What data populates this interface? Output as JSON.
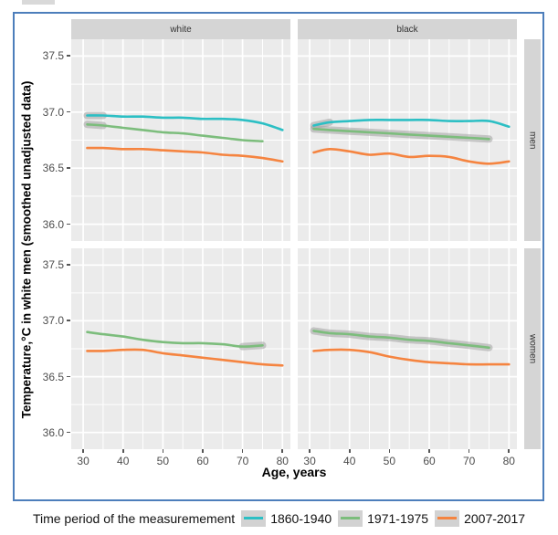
{
  "legend": {
    "title": "Time period of the measuremement",
    "items": [
      {
        "period": "1860-1940",
        "label": "1860-1940"
      },
      {
        "period": "1971-1975",
        "label": "1971-1975"
      },
      {
        "period": "2007-2017",
        "label": "2007-2017"
      }
    ]
  },
  "chart_data": {
    "type": "line",
    "title": "",
    "xlabel": "Age, years",
    "ylabel": "Temperature,°C in white men (smoothed unadjusted data)",
    "facet_cols": [
      "white",
      "black"
    ],
    "facet_rows": [
      "men",
      "women"
    ],
    "xlim": [
      27,
      82
    ],
    "ylim": [
      35.85,
      37.65
    ],
    "x_ticks": [
      30,
      40,
      50,
      60,
      70,
      80
    ],
    "x_tick_labels": [
      "30",
      "40",
      "50",
      "60",
      "70",
      "80"
    ],
    "x_minor": [
      35,
      45,
      55,
      65,
      75
    ],
    "y_ticks": [
      37.5,
      37.0,
      36.5,
      36.0
    ],
    "y_tick_labels": [
      "37.5",
      "37.0",
      "36.5",
      "36.0"
    ],
    "y_minor": [
      37.25,
      36.75,
      36.25
    ],
    "grid": true,
    "legend_position": "bottom",
    "panel_bg": "#ebebeb",
    "grid_color": "#ffffff",
    "ci_color": "#a3a3a3",
    "series_colors": {
      "1860-1940": "#2cbfc4",
      "1971-1975": "#7cbd7c",
      "2007-2017": "#f58440"
    },
    "panels": [
      {
        "id": "white_men",
        "col": "white",
        "row": "men",
        "series": [
          {
            "period": "1860-1940",
            "x": [
              31,
              35,
              40,
              45,
              50,
              55,
              60,
              65,
              70,
              75,
              80
            ],
            "y": [
              36.97,
              36.97,
              36.96,
              36.96,
              36.95,
              36.95,
              36.94,
              36.94,
              36.93,
              36.9,
              36.84
            ],
            "ci": [
              [
                31,
                36
              ]
            ]
          },
          {
            "period": "1971-1975",
            "x": [
              31,
              35,
              40,
              45,
              50,
              55,
              60,
              65,
              70,
              75
            ],
            "y": [
              36.89,
              36.88,
              36.86,
              36.84,
              36.82,
              36.81,
              36.79,
              36.77,
              36.75,
              36.74
            ],
            "ci": [
              [
                31,
                35
              ],
              [
                71,
                75
              ]
            ]
          },
          {
            "period": "2007-2017",
            "x": [
              31,
              35,
              40,
              45,
              50,
              55,
              60,
              65,
              70,
              75,
              80
            ],
            "y": [
              36.68,
              36.68,
              36.67,
              36.67,
              36.66,
              36.65,
              36.64,
              36.62,
              36.61,
              36.59,
              36.56
            ],
            "ci": []
          }
        ]
      },
      {
        "id": "black_men",
        "col": "black",
        "row": "men",
        "series": [
          {
            "period": "1860-1940",
            "x": [
              31,
              35,
              40,
              45,
              50,
              55,
              60,
              65,
              70,
              75,
              80
            ],
            "y": [
              36.88,
              36.91,
              36.92,
              36.93,
              36.93,
              36.93,
              36.93,
              36.92,
              36.92,
              36.92,
              36.87
            ],
            "ci": [
              [
                31,
                36
              ]
            ]
          },
          {
            "period": "1971-1975",
            "x": [
              31,
              35,
              40,
              45,
              50,
              55,
              60,
              65,
              70,
              75
            ],
            "y": [
              36.85,
              36.84,
              36.83,
              36.82,
              36.81,
              36.8,
              36.79,
              36.78,
              36.77,
              36.76
            ],
            "ci": [
              [
                31,
                75
              ]
            ]
          },
          {
            "period": "2007-2017",
            "x": [
              31,
              35,
              40,
              45,
              50,
              55,
              60,
              65,
              70,
              75,
              80
            ],
            "y": [
              36.64,
              36.67,
              36.65,
              36.62,
              36.63,
              36.6,
              36.61,
              36.6,
              36.56,
              36.54,
              36.56
            ],
            "ci": [
              [
                31,
                34
              ],
              [
                76,
                80
              ]
            ]
          }
        ]
      },
      {
        "id": "white_women",
        "col": "white",
        "row": "women",
        "series": [
          {
            "period": "1971-1975",
            "x": [
              31,
              35,
              40,
              45,
              50,
              55,
              60,
              65,
              70,
              75
            ],
            "y": [
              36.9,
              36.88,
              36.86,
              36.83,
              36.81,
              36.8,
              36.8,
              36.79,
              36.77,
              36.78
            ],
            "ci": [
              [
                70,
                75
              ]
            ]
          },
          {
            "period": "2007-2017",
            "x": [
              31,
              35,
              40,
              45,
              50,
              55,
              60,
              65,
              70,
              75,
              80
            ],
            "y": [
              36.73,
              36.73,
              36.74,
              36.74,
              36.71,
              36.69,
              36.67,
              36.65,
              36.63,
              36.61,
              36.6
            ],
            "ci": []
          }
        ]
      },
      {
        "id": "black_women",
        "col": "black",
        "row": "women",
        "series": [
          {
            "period": "1971-1975",
            "x": [
              31,
              35,
              40,
              45,
              50,
              55,
              60,
              65,
              70,
              75
            ],
            "y": [
              36.91,
              36.89,
              36.88,
              36.86,
              36.85,
              36.83,
              36.82,
              36.8,
              36.78,
              36.76
            ],
            "ci": [
              [
                31,
                75
              ]
            ]
          },
          {
            "period": "2007-2017",
            "x": [
              31,
              35,
              40,
              45,
              50,
              55,
              60,
              65,
              70,
              75,
              80
            ],
            "y": [
              36.73,
              36.74,
              36.74,
              36.72,
              36.68,
              36.65,
              36.63,
              36.62,
              36.61,
              36.61,
              36.61
            ],
            "ci": []
          }
        ]
      }
    ]
  }
}
